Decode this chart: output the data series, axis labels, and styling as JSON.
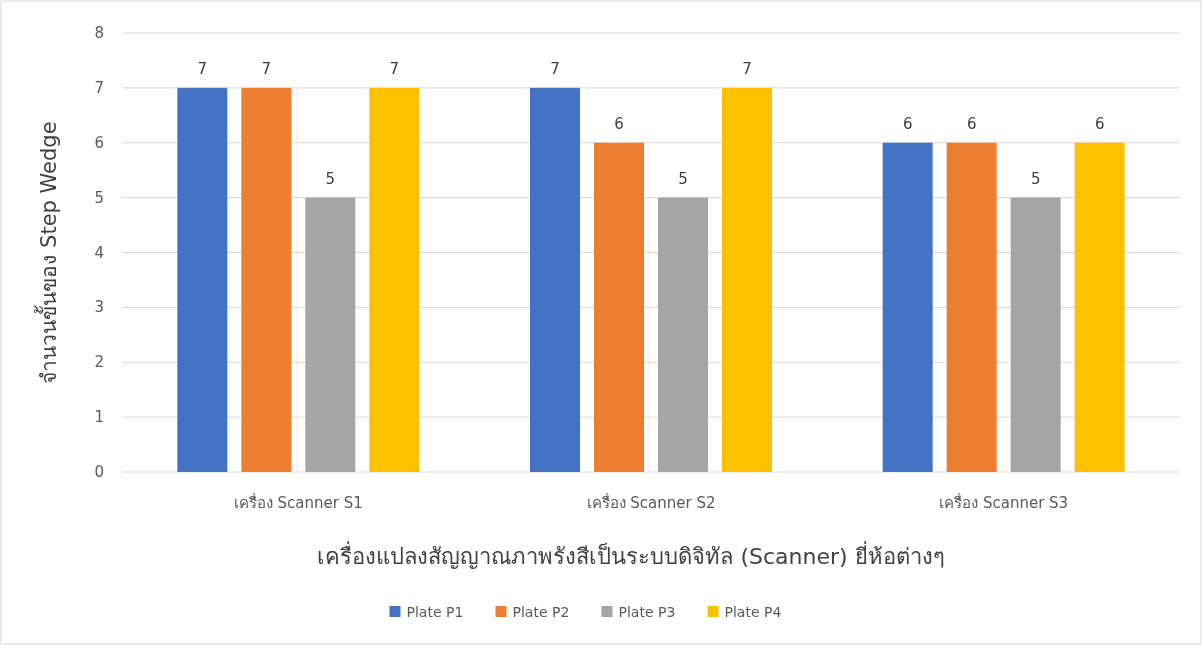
{
  "chart_data": {
    "type": "bar",
    "xlabel": "เครื่องแปลงสัญญาณภาพรังสีเป็นระบบดิจิทัล (Scanner) ยี่ห้อต่างๆ",
    "ylabel": "จำนวนขั้นของ Step Wedge",
    "categories": [
      "เครื่อง Scanner S1",
      "เครื่อง Scanner S2",
      "เครื่อง Scanner S3"
    ],
    "series": [
      {
        "name": "Plate P1",
        "color": "#4472c4",
        "values": [
          7,
          7,
          6
        ]
      },
      {
        "name": "Plate P2",
        "color": "#ed7d31",
        "values": [
          7,
          6,
          6
        ]
      },
      {
        "name": "Plate P3",
        "color": "#a5a5a5",
        "values": [
          5,
          5,
          5
        ]
      },
      {
        "name": "Plate P4",
        "color": "#ffc000",
        "values": [
          7,
          7,
          6
        ]
      }
    ],
    "ylim": [
      0,
      8
    ],
    "yticks": [
      0,
      1,
      2,
      3,
      4,
      5,
      6,
      7,
      8
    ],
    "grid": "y",
    "legend": "bottom",
    "data_labels": true
  }
}
